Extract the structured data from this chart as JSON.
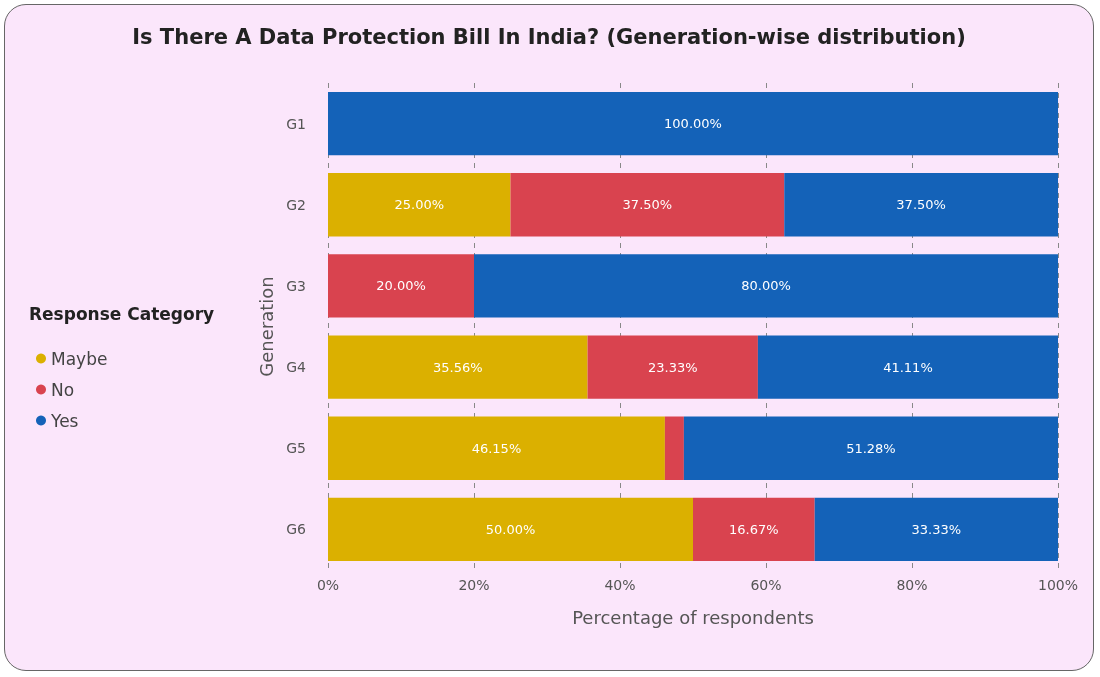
{
  "chart_data": {
    "type": "bar",
    "title": "Is There A Data Protection Bill In India? (Generation-wise distribution)",
    "xlabel": "Percentage of respondents",
    "ylabel": "Generation",
    "legend_title": "Response Category",
    "orientation": "horizontal",
    "stacked": true,
    "categories": [
      "G1",
      "G2",
      "G3",
      "G4",
      "G5",
      "G6"
    ],
    "series": [
      {
        "name": "Maybe",
        "color": "#dbb000",
        "values": [
          0,
          25,
          0,
          35.56,
          46.15,
          50
        ],
        "value_labels": [
          null,
          "25.00%",
          null,
          "35.56%",
          "46.15%",
          "50.00%"
        ]
      },
      {
        "name": "No",
        "color": "#d9434f",
        "values": [
          0,
          37.5,
          20,
          23.33,
          2.6,
          16.67
        ],
        "value_labels": [
          null,
          "37.50%",
          "20.00%",
          "23.33%",
          null,
          "16.67%"
        ]
      },
      {
        "name": "Yes",
        "color": "#1462b8",
        "values": [
          100,
          37.5,
          80,
          41.11,
          51.28,
          33.33
        ],
        "value_labels": [
          "100.00%",
          "37.50%",
          "80.00%",
          "41.11%",
          "51.28%",
          "33.33%"
        ]
      }
    ],
    "xlim": [
      0,
      100
    ],
    "xticks": [
      {
        "value": 0,
        "label": "0%"
      },
      {
        "value": 20,
        "label": "20%"
      },
      {
        "value": 40,
        "label": "40%"
      },
      {
        "value": 60,
        "label": "60%"
      },
      {
        "value": 80,
        "label": "80%"
      },
      {
        "value": 100,
        "label": "100%"
      }
    ],
    "grid": "x",
    "legend": "left"
  }
}
